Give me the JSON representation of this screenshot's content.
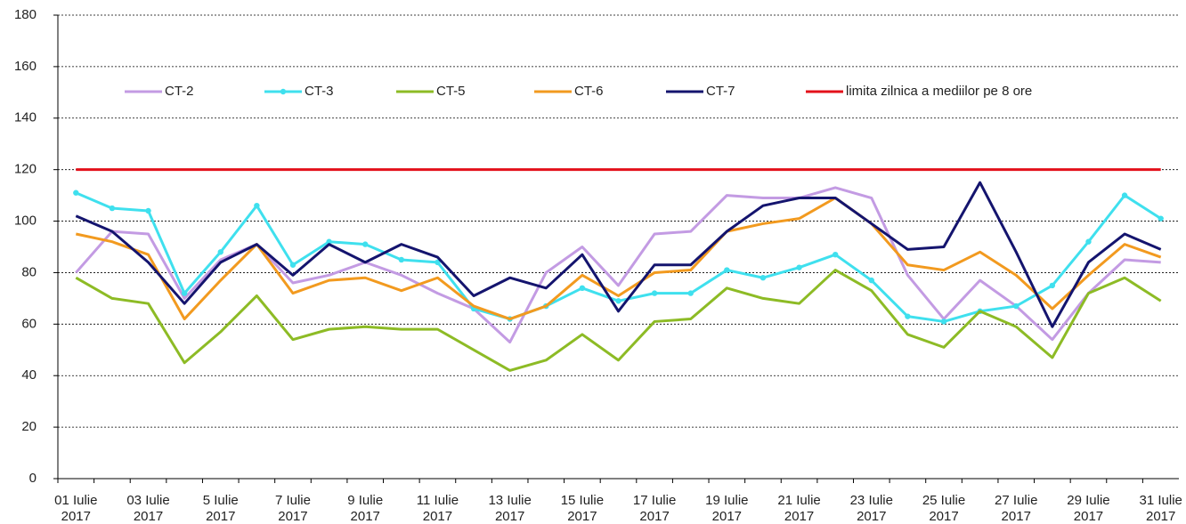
{
  "chart_data": {
    "type": "line",
    "categories": [
      "01 Iulie\n2017",
      null,
      "03 Iulie\n2017",
      null,
      "5 Iulie\n2017",
      null,
      "7 Iulie\n2017",
      null,
      "9 Iulie\n2017",
      null,
      "11 Iulie\n2017",
      null,
      "13 Iulie\n2017",
      null,
      "15 Iulie\n2017",
      null,
      "17 Iulie\n2017",
      null,
      "19 Iulie\n2017",
      null,
      "21 Iulie\n2017",
      null,
      "23 Iulie\n2017",
      null,
      "25 Iulie\n2017",
      null,
      "27 Iulie\n2017",
      null,
      "29 Iulie\n2017",
      null,
      "31 Iulie\n2017"
    ],
    "series": [
      {
        "name": "CT-2",
        "color": "#c39be3",
        "values": [
          80,
          96,
          95,
          70,
          85,
          91,
          76,
          79,
          84,
          79,
          72,
          66,
          53,
          80,
          90,
          75,
          95,
          96,
          110,
          109,
          109,
          113,
          109,
          79,
          62,
          77,
          67,
          54,
          72,
          85,
          84
        ]
      },
      {
        "name": "CT-3",
        "color": "#3fe0ee",
        "marker": "circle",
        "values": [
          111,
          105,
          104,
          72,
          88,
          106,
          83,
          92,
          91,
          85,
          84,
          66,
          62,
          67,
          74,
          69,
          72,
          72,
          81,
          78,
          82,
          87,
          77,
          63,
          61,
          65,
          67,
          75,
          92,
          110,
          101
        ]
      },
      {
        "name": "CT-5",
        "color": "#8dbb25",
        "values": [
          78,
          70,
          68,
          45,
          57,
          71,
          54,
          58,
          59,
          58,
          58,
          50,
          42,
          46,
          56,
          46,
          61,
          62,
          74,
          70,
          68,
          81,
          73,
          56,
          51,
          65,
          59,
          47,
          72,
          78,
          69
        ]
      },
      {
        "name": "CT-6",
        "color": "#f29a1f",
        "values": [
          95,
          92,
          87,
          62,
          77,
          91,
          72,
          77,
          78,
          73,
          78,
          67,
          62,
          67,
          79,
          71,
          80,
          81,
          96,
          99,
          101,
          109,
          99,
          83,
          81,
          88,
          79,
          66,
          79,
          91,
          86
        ]
      },
      {
        "name": "CT-7",
        "color": "#14146e",
        "values": [
          102,
          96,
          84,
          68,
          84,
          91,
          79,
          91,
          84,
          91,
          86,
          71,
          78,
          74,
          87,
          65,
          83,
          83,
          96,
          106,
          109,
          109,
          99,
          89,
          90,
          115,
          88,
          59,
          84,
          95,
          89
        ]
      },
      {
        "name": "limita zilnica a mediilor pe 8 ore",
        "color": "#e3101a",
        "values": [
          120,
          120,
          120,
          120,
          120,
          120,
          120,
          120,
          120,
          120,
          120,
          120,
          120,
          120,
          120,
          120,
          120,
          120,
          120,
          120,
          120,
          120,
          120,
          120,
          120,
          120,
          120,
          120,
          120,
          120,
          120
        ]
      }
    ],
    "ylim": [
      0,
      180
    ],
    "yticks": [
      0,
      20,
      40,
      60,
      80,
      100,
      120,
      140,
      160,
      180
    ],
    "grid": true
  }
}
